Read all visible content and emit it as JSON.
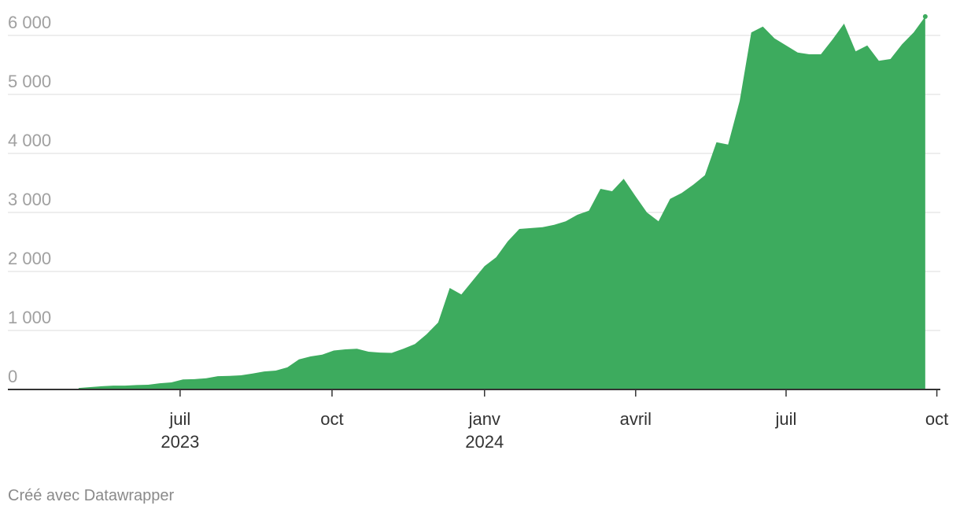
{
  "chart_data": {
    "type": "area",
    "color": "#3dab5e",
    "grid": true,
    "footer": "Créé avec Datawrapper",
    "categories": [
      null,
      null,
      null,
      null,
      null,
      null,
      null,
      null,
      null,
      null,
      null,
      null,
      null,
      null,
      null,
      null,
      null,
      null,
      null,
      null,
      null,
      null,
      null,
      null,
      null,
      null,
      null,
      null,
      null,
      null,
      null,
      null,
      null,
      null,
      null,
      null,
      null,
      null,
      null,
      null,
      null,
      null,
      null,
      null,
      null,
      null,
      null,
      null,
      null,
      null,
      null,
      null,
      null,
      null,
      null,
      null,
      null,
      null,
      null,
      null,
      null,
      null,
      null,
      null,
      null,
      null,
      null,
      null,
      null,
      null,
      null,
      null,
      null,
      null
    ],
    "values": [
      25,
      40,
      55,
      65,
      65,
      75,
      80,
      105,
      120,
      170,
      175,
      190,
      225,
      230,
      240,
      270,
      305,
      320,
      375,
      510,
      560,
      590,
      660,
      680,
      690,
      640,
      625,
      620,
      690,
      770,
      935,
      1135,
      1720,
      1610,
      1850,
      2090,
      2240,
      2510,
      2720,
      2735,
      2750,
      2790,
      2850,
      2960,
      3030,
      3400,
      3360,
      3570,
      3280,
      3000,
      2850,
      3230,
      3330,
      3470,
      3630,
      4190,
      4150,
      4890,
      6050,
      6150,
      5950,
      5830,
      5710,
      5680,
      5680,
      5930,
      6200,
      5730,
      5830,
      5570,
      5600,
      5850,
      6050,
      6320
    ],
    "xlim": [
      -6.1,
      74.3
    ],
    "xticks": [
      {
        "value": 8.75,
        "label": "juil",
        "sublabel": "2023"
      },
      {
        "value": 21.85,
        "label": "oct"
      },
      {
        "value": 35.0,
        "label": "janv",
        "sublabel": "2024"
      },
      {
        "value": 48.03,
        "label": "avril"
      },
      {
        "value": 61.0,
        "label": "juil"
      },
      {
        "value": 74.0,
        "label": "oct"
      }
    ],
    "ylim": [
      0,
      6000
    ],
    "yticks": [
      {
        "value": 0,
        "label": "0"
      },
      {
        "value": 1000,
        "label": "1 000"
      },
      {
        "value": 2000,
        "label": "2 000"
      },
      {
        "value": 3000,
        "label": "3 000"
      },
      {
        "value": 4000,
        "label": "4 000"
      },
      {
        "value": 5000,
        "label": "5 000"
      },
      {
        "value": 6000,
        "label": "6 000"
      }
    ]
  }
}
